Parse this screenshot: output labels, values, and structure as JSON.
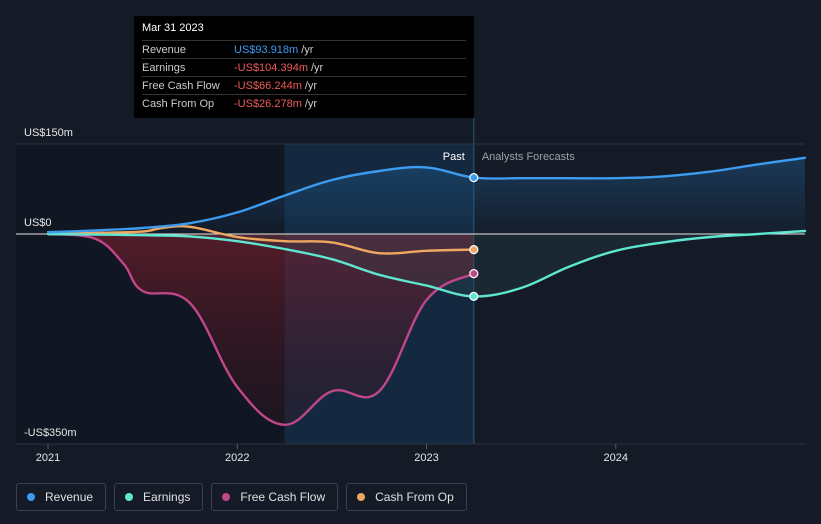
{
  "tooltip": {
    "date": "Mar 31 2023",
    "rows": [
      {
        "label": "Revenue",
        "value": "US$93.918m",
        "unit": "/yr",
        "color": "#3d9bf0"
      },
      {
        "label": "Earnings",
        "value": "-US$104.394m",
        "unit": "/yr",
        "color": "#f05a5a"
      },
      {
        "label": "Free Cash Flow",
        "value": "-US$66.244m",
        "unit": "/yr",
        "color": "#f05a5a"
      },
      {
        "label": "Cash From Op",
        "value": "-US$26.278m",
        "unit": "/yr",
        "color": "#f05a5a"
      }
    ]
  },
  "labels": {
    "past": "Past",
    "forecast": "Analysts Forecasts"
  },
  "chart_data": {
    "type": "line",
    "y_tick_labels": [
      "US$150m",
      "US$0",
      "-US$350m"
    ],
    "y_ticks": [
      150,
      0,
      -350
    ],
    "x_tick_labels": [
      "2021",
      "2022",
      "2023",
      "2024"
    ],
    "x_ticks": [
      2021.0,
      2022.0,
      2023.0,
      2024.0
    ],
    "ylim": [
      -350,
      150
    ],
    "xlim": [
      2021.0,
      2025.0
    ],
    "past_end": 2023.25,
    "highlight_start": 2022.25,
    "series": [
      {
        "name": "Revenue",
        "color": "#3d9bf0",
        "x": [
          2021.0,
          2021.25,
          2021.5,
          2021.75,
          2022.0,
          2022.25,
          2022.5,
          2022.75,
          2023.0,
          2023.25,
          2023.5,
          2023.75,
          2024.0,
          2024.25,
          2024.5,
          2024.75,
          2025.0
        ],
        "y": [
          3,
          6,
          10,
          18,
          36,
          64,
          90,
          105,
          111,
          94,
          93,
          93,
          93,
          96,
          104,
          116,
          127
        ]
      },
      {
        "name": "Earnings",
        "color": "#5ee6d0",
        "x": [
          2021.0,
          2021.25,
          2021.5,
          2021.75,
          2022.0,
          2022.25,
          2022.5,
          2022.75,
          2023.0,
          2023.25,
          2023.5,
          2023.75,
          2024.0,
          2024.25,
          2024.5,
          2024.75,
          2025.0
        ],
        "y": [
          0,
          -1,
          -2,
          -4,
          -12,
          -25,
          -42,
          -68,
          -86,
          -104,
          -90,
          -55,
          -28,
          -14,
          -5,
          0,
          5
        ]
      },
      {
        "name": "Free Cash Flow",
        "color": "#c0468a",
        "x": [
          2021.0,
          2021.25,
          2021.4,
          2021.5,
          2021.75,
          2022.0,
          2022.25,
          2022.5,
          2022.75,
          2023.0,
          2023.25
        ],
        "y": [
          0,
          -8,
          -50,
          -95,
          -115,
          -255,
          -318,
          -262,
          -262,
          -110,
          -66
        ]
      },
      {
        "name": "Cash From Op",
        "color": "#f0a860",
        "x": [
          2021.0,
          2021.25,
          2021.5,
          2021.6,
          2021.75,
          2022.0,
          2022.25,
          2022.5,
          2022.75,
          2023.0,
          2023.25
        ],
        "y": [
          0,
          2,
          4,
          10,
          12,
          -5,
          -12,
          -14,
          -32,
          -28,
          -26
        ]
      }
    ]
  }
}
